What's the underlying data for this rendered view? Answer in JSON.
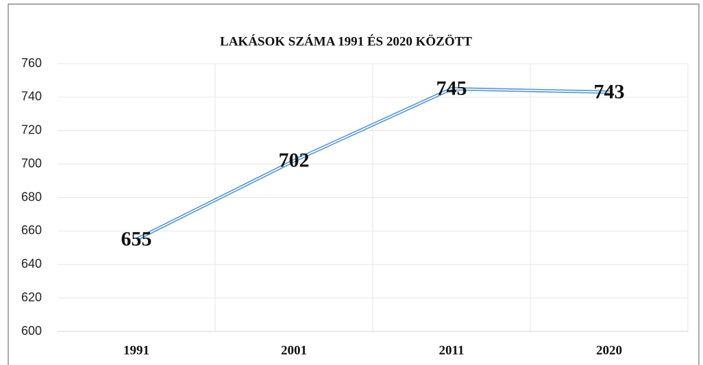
{
  "chart_data": {
    "type": "line",
    "title": "LAKÁSOK SZÁMA 1991 ÉS 2020 KÖZÖTT",
    "categories": [
      "1991",
      "2001",
      "2011",
      "2020"
    ],
    "values": [
      655,
      702,
      745,
      743
    ],
    "color": "#5b9bd5",
    "ylim": [
      600,
      760
    ],
    "yticks": [
      600,
      620,
      640,
      660,
      680,
      700,
      720,
      740,
      760
    ],
    "grid": true
  }
}
